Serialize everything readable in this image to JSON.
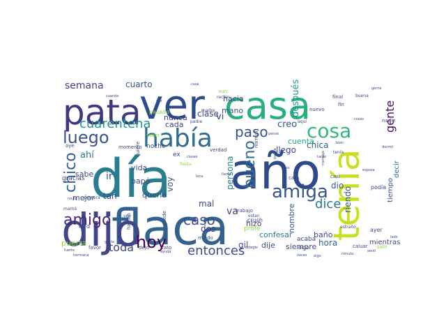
{
  "colors": {
    "background": "#ffffff",
    "palette": [
      "#440154",
      "#482677",
      "#3f4788",
      "#33638d",
      "#287d8e",
      "#1f968b",
      "#29af7f",
      "#55c667",
      "#95d840",
      "#dce319"
    ]
  },
  "words": [
    {
      "text": "día",
      "color": "#287d8e"
    },
    {
      "text": "año",
      "color": "#2d4a8a"
    },
    {
      "text": "flaca",
      "color": "#33638d"
    },
    {
      "text": "casa",
      "color": "#29af7f"
    },
    {
      "text": "tenía",
      "color": "#c9e020"
    },
    {
      "text": "ver",
      "color": "#2d4a8a"
    },
    {
      "text": "dijo",
      "color": "#3f4788"
    },
    {
      "text": "pata",
      "color": "#3f3a80"
    },
    {
      "text": "había",
      "color": "#2f6b8e"
    },
    {
      "text": "amiga",
      "color": "#39568c"
    },
    {
      "text": "luego",
      "color": "#3b528b"
    },
    {
      "text": "cosa",
      "color": "#35b779"
    },
    {
      "text": "paso",
      "color": "#3a4e8b"
    },
    {
      "text": "chico",
      "color": "#33638d"
    },
    {
      "text": "amigo",
      "color": "#482677"
    },
    {
      "text": "cuarentena",
      "color": "#1f968b"
    },
    {
      "text": "hoy",
      "color": "#440154"
    },
    {
      "text": "bueno",
      "color": "#2e6d8e"
    },
    {
      "text": "entonces",
      "color": "#3e4a89"
    },
    {
      "text": "caso",
      "color": "#3d4d8a"
    },
    {
      "text": "toda",
      "color": "#404387"
    },
    {
      "text": "dice",
      "color": "#2a788e"
    },
    {
      "text": "gente",
      "color": "#46085c"
    },
    {
      "text": "semana",
      "color": "#424086"
    },
    {
      "text": "cuarto",
      "color": "#3b528b"
    },
    {
      "text": "después",
      "color": "#1f9a8a"
    },
    {
      "text": "creo",
      "color": "#3b528b"
    },
    {
      "text": "hacia",
      "color": "#3f4788"
    },
    {
      "text": "mano",
      "color": "#3b528b"
    },
    {
      "text": "nunca",
      "color": "#433e85"
    },
    {
      "text": "cada",
      "color": "#3f4788"
    },
    {
      "text": "clase",
      "color": "#3f4788"
    },
    {
      "text": "vi",
      "color": "#404387"
    },
    {
      "text": "ahí",
      "color": "#2a788e"
    },
    {
      "text": "persona",
      "color": "#25858e"
    },
    {
      "text": "voy",
      "color": "#3b528b"
    },
    {
      "text": "llego",
      "color": "#3f4788"
    },
    {
      "text": "chica",
      "color": "#365c8d"
    },
    {
      "text": "cuenta",
      "color": "#25ab82"
    },
    {
      "text": "hizo",
      "color": "#404387"
    },
    {
      "text": "confesar",
      "color": "#2a788e"
    },
    {
      "text": "hora",
      "color": "#31688e"
    },
    {
      "text": "dio",
      "color": "#3b528b"
    },
    {
      "text": "va",
      "color": "#3f4788"
    },
    {
      "text": "mal",
      "color": "#3f4788"
    },
    {
      "text": "dos",
      "color": "#433e85"
    },
    {
      "text": "sabe",
      "color": "#3f4788"
    },
    {
      "text": "ir",
      "color": "#3b528b"
    },
    {
      "text": "tan",
      "color": "#3f4788"
    },
    {
      "text": "mejor",
      "color": "#3f4788"
    },
    {
      "text": "puerta",
      "color": "#8fd744"
    },
    {
      "text": "vida",
      "color": "#3f4788"
    },
    {
      "text": "papá",
      "color": "#3f4788"
    },
    {
      "text": "quería",
      "color": "#3f4788"
    },
    {
      "text": "dije",
      "color": "#3f4788"
    },
    {
      "text": "siempre",
      "color": "#3f4788"
    },
    {
      "text": "nombre",
      "color": "#3b528b"
    },
    {
      "text": "baño",
      "color": "#3f4788"
    },
    {
      "text": "riendo",
      "color": "#3b528b"
    },
    {
      "text": "mientras",
      "color": "#3f4788"
    },
    {
      "text": "tiempo",
      "color": "#3b528b"
    },
    {
      "text": "decir",
      "color": "#2a788e"
    },
    {
      "text": "gil",
      "color": "#3b528b"
    },
    {
      "text": "noche",
      "color": "#3f4788"
    },
    {
      "text": "momento",
      "color": "#3f4788"
    },
    {
      "text": "saber",
      "color": "#8fd744"
    },
    {
      "text": "pasado",
      "color": "#8fd744"
    },
    {
      "text": "crush",
      "color": "#3f4788"
    },
    {
      "text": "profe",
      "color": "#8fd744"
    },
    {
      "text": "acaba",
      "color": "#3f4788"
    },
    {
      "text": "gracias",
      "color": "#3f4788"
    },
    {
      "text": "mrd",
      "color": "#3f4788"
    },
    {
      "text": "favor",
      "color": "#3f4788"
    },
    {
      "text": "dejo",
      "color": "#3f4788"
    },
    {
      "text": "rato",
      "color": "#3f4788"
    },
    {
      "text": "miedo",
      "color": "#3f4788"
    },
    {
      "text": "digo",
      "color": "#3f4788"
    },
    {
      "text": "ayer",
      "color": "#3f4788"
    },
    {
      "text": "salir",
      "color": "#8fd744"
    },
    {
      "text": "podía",
      "color": "#3f4788"
    },
    {
      "text": "nuevo",
      "color": "#3f4788"
    },
    {
      "text": "final",
      "color": "#3f4788"
    },
    {
      "text": "fin",
      "color": "#3f4788"
    },
    {
      "text": "buena",
      "color": "#3f4788"
    },
    {
      "text": "nadie",
      "color": "#3f4788"
    },
    {
      "text": "cara",
      "color": "#3f4788"
    },
    {
      "text": "casi",
      "color": "#3f4788"
    },
    {
      "text": "aquí",
      "color": "#3f4788"
    },
    {
      "text": "madre",
      "color": "#3f4788"
    },
    {
      "text": "padre",
      "color": "#3f4788"
    },
    {
      "text": "quiere",
      "color": "#3f4788"
    },
    {
      "text": "veo",
      "color": "#3f4788"
    },
    {
      "text": "oye",
      "color": "#3f4788"
    },
    {
      "text": "foto",
      "color": "#3f4788"
    },
    {
      "text": "habían",
      "color": "#3f4788"
    },
    {
      "text": "quede",
      "color": "#3f4788"
    },
    {
      "text": "estan",
      "color": "#3f4788"
    },
    {
      "text": "verdad",
      "color": "#3f4788"
    },
    {
      "text": "trabajo",
      "color": "#3f4788"
    },
    {
      "text": "normal",
      "color": "#3f4788"
    },
    {
      "text": "fiesta",
      "color": "#8fd744"
    },
    {
      "text": "aun",
      "color": "#8fd744"
    },
    {
      "text": "recién",
      "color": "#3f4788"
    },
    {
      "text": "ex",
      "color": "#3f4788"
    },
    {
      "text": "primera",
      "color": "#3f4788"
    },
    {
      "text": "mamá",
      "color": "#3f4788"
    },
    {
      "text": "tenía",
      "color": "#3f4788"
    },
    {
      "text": "caluar",
      "color": "#3f4788"
    },
    {
      "text": "estraño",
      "color": "#3f4788"
    },
    {
      "text": "ayuda",
      "color": "#3f4788"
    },
    {
      "text": "lado",
      "color": "#3f4788"
    },
    {
      "text": "veces",
      "color": "#3f4788"
    },
    {
      "text": "minuto",
      "color": "#3f4788"
    },
    {
      "text": "algo",
      "color": "#3f4788"
    },
    {
      "text": "mensaje",
      "color": "#3f4788"
    },
    {
      "text": "pensé",
      "color": "#3f4788"
    },
    {
      "text": "pareja",
      "color": "#3f4788"
    },
    {
      "text": "mes",
      "color": "#3f4788"
    },
    {
      "text": "clases",
      "color": "#3f4788"
    },
    {
      "text": "loca",
      "color": "#3f4788"
    },
    {
      "text": "cosas",
      "color": "#3f4788"
    },
    {
      "text": "esposa",
      "color": "#3f4788"
    },
    {
      "text": "dormir",
      "color": "#3f4788"
    },
    {
      "text": "tarde",
      "color": "#3f4788"
    },
    {
      "text": "bien",
      "color": "#3f4788"
    },
    {
      "text": "vez",
      "color": "#3f4788"
    },
    {
      "text": "hermana",
      "color": "#3f4788"
    },
    {
      "text": "novio",
      "color": "#3f4788"
    },
    {
      "text": "mira",
      "color": "#3f4788"
    },
    {
      "text": "gusta",
      "color": "#3f4788"
    },
    {
      "text": "cuando",
      "color": "#3f4788"
    },
    {
      "text": "fuerte",
      "color": "#3f4788"
    },
    {
      "text": "llamo",
      "color": "#3f4788"
    },
    {
      "text": "casa",
      "color": "#3f4788"
    },
    {
      "text": "colegio",
      "color": "#3f4788"
    },
    {
      "text": "sentí",
      "color": "#3f4788"
    },
    {
      "text": "gente",
      "color": "#3f4788"
    }
  ]
}
